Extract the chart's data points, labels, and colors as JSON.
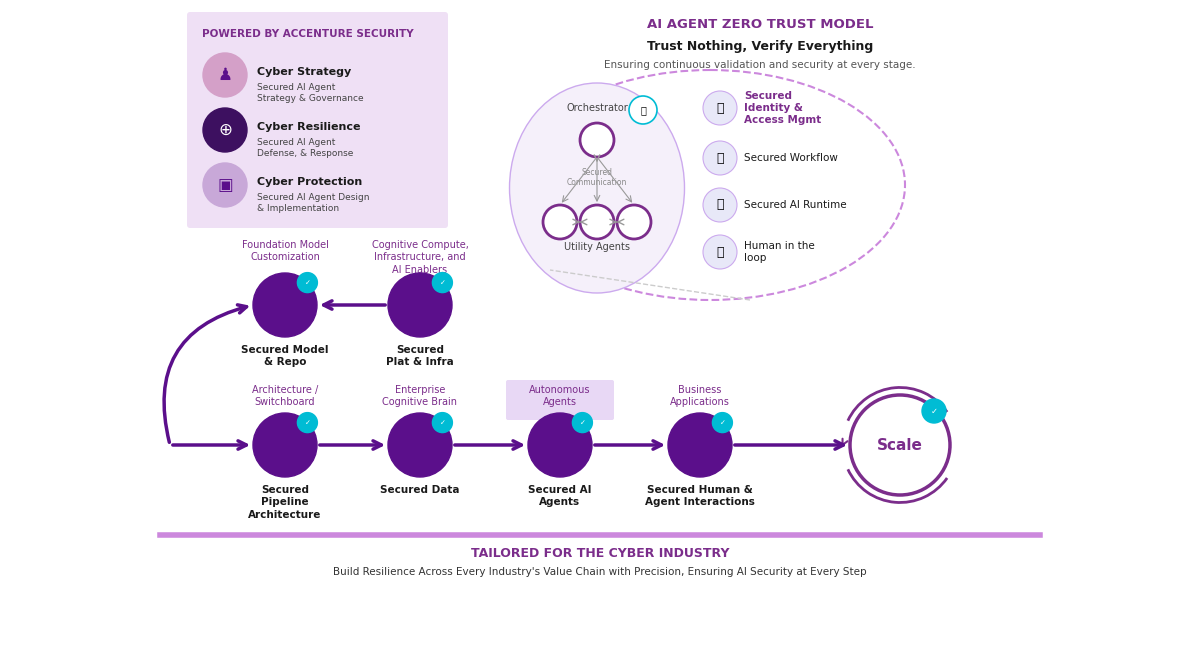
{
  "bg_color": "#ffffff",
  "title_left": "POWERED BY ACCENTURE SECURITY",
  "title_left_color": "#7B2D8B",
  "left_box_bg": "#EFE0F5",
  "left_box_items": [
    {
      "title": "Cyber Strategy",
      "subtitle": "Secured AI Agent\nStrategy & Governance",
      "icon_bg": "#D4A0C8",
      "icon_color": "#7B2D8B"
    },
    {
      "title": "Cyber Resilience",
      "subtitle": "Secured AI Agent\nDefense, & Response",
      "icon_bg": "#3D1060",
      "icon_color": "#ffffff"
    },
    {
      "title": "Cyber Protection",
      "subtitle": "Secured AI Agent Design\n& Implementation",
      "icon_bg": "#C8A8D8",
      "icon_color": "#7B2D8B"
    }
  ],
  "right_title": "AI AGENT ZERO TRUST MODEL",
  "right_title_color": "#7B2D8B",
  "right_subtitle": "Trust Nothing, Verify Everything",
  "right_subtitle_color": "#1a1a1a",
  "right_desc": "Ensuring continuous validation and security at every stage.",
  "right_desc_color": "#555555",
  "trust_items": [
    {
      "label": "Secured\nIdentity &\nAccess Mgmt",
      "bold": true
    },
    {
      "label": "Secured Workflow",
      "bold": false
    },
    {
      "label": "Secured AI Runtime",
      "bold": false
    },
    {
      "label": "Human in the\nloop",
      "bold": false
    }
  ],
  "flow_top_labels": [
    "Foundation Model\nCustomization",
    "Cognitive Compute,\nInfrastructure, and\nAI Enablers"
  ],
  "flow_top_nodes": [
    "Secured Model\n& Repo",
    "Secured\nPlat & Infra"
  ],
  "flow_bottom_labels": [
    "Architecture /\nSwitchboard",
    "Enterprise\nCognitive Brain",
    "Autonomous\nAgents",
    "Business\nApplications"
  ],
  "flow_bottom_nodes": [
    "Secured\nPipeline\nArchitecture",
    "Secured Data",
    "Secured AI\nAgents",
    "Secured Human &\nAgent Interactions"
  ],
  "scale_label": "Scale",
  "bottom_title": "TAILORED FOR THE CYBER INDUSTRY",
  "bottom_title_color": "#7B2D8B",
  "bottom_desc": "Build Resilience Across Every Industry's Value Chain with Precision, Ensuring AI Security at Every Step",
  "bottom_desc_color": "#333333",
  "purple_dark": "#5B0F8B",
  "purple_mid": "#7B2D8B",
  "purple_light": "#C8A8E8",
  "teal": "#00BCD4",
  "arrow_color": "#7B2D8B"
}
